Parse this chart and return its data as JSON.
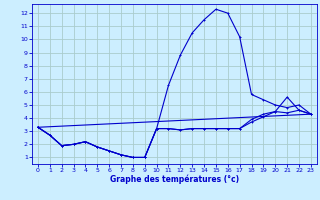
{
  "xlabel": "Graphe des températures (°c)",
  "bg_color": "#cceeff",
  "grid_color": "#aacccc",
  "line_color": "#0000cc",
  "xlim": [
    -0.5,
    23.5
  ],
  "ylim": [
    0.5,
    12.7
  ],
  "xticks": [
    0,
    1,
    2,
    3,
    4,
    5,
    6,
    7,
    8,
    9,
    10,
    11,
    12,
    13,
    14,
    15,
    16,
    17,
    18,
    19,
    20,
    21,
    22,
    23
  ],
  "yticks": [
    1,
    2,
    3,
    4,
    5,
    6,
    7,
    8,
    9,
    10,
    11,
    12
  ],
  "line1_x": [
    0,
    1,
    2,
    3,
    4,
    5,
    6,
    7,
    8,
    9,
    10,
    11,
    12,
    13,
    14,
    15,
    16,
    17,
    18,
    19,
    20,
    21,
    22,
    23
  ],
  "line1_y": [
    3.3,
    2.7,
    1.9,
    2.0,
    2.2,
    1.8,
    1.5,
    1.2,
    1.0,
    1.0,
    3.2,
    6.5,
    8.8,
    10.5,
    11.5,
    12.3,
    12.0,
    10.2,
    5.8,
    5.4,
    5.0,
    4.8,
    5.0,
    4.3
  ],
  "line2_x": [
    0,
    1,
    2,
    3,
    4,
    5,
    6,
    7,
    8,
    9,
    10,
    11,
    12,
    13,
    14,
    15,
    16,
    17,
    18,
    19,
    20,
    21,
    22,
    23
  ],
  "line2_y": [
    3.3,
    2.7,
    1.9,
    2.0,
    2.2,
    1.8,
    1.5,
    1.2,
    1.0,
    1.0,
    3.2,
    3.2,
    3.1,
    3.2,
    3.2,
    3.2,
    3.2,
    3.2,
    3.7,
    4.1,
    4.5,
    4.4,
    4.6,
    4.3
  ],
  "line3_x": [
    0,
    1,
    2,
    3,
    4,
    5,
    6,
    7,
    8,
    9,
    10,
    11,
    12,
    13,
    14,
    15,
    16,
    17,
    18,
    19,
    20,
    21,
    22,
    23
  ],
  "line3_y": [
    3.3,
    2.7,
    1.9,
    2.0,
    2.2,
    1.8,
    1.5,
    1.2,
    1.0,
    1.0,
    3.2,
    3.2,
    3.1,
    3.2,
    3.2,
    3.2,
    3.2,
    3.2,
    3.9,
    4.3,
    4.5,
    5.6,
    4.6,
    4.3
  ],
  "line4_x": [
    0,
    23
  ],
  "line4_y": [
    3.3,
    4.3
  ]
}
